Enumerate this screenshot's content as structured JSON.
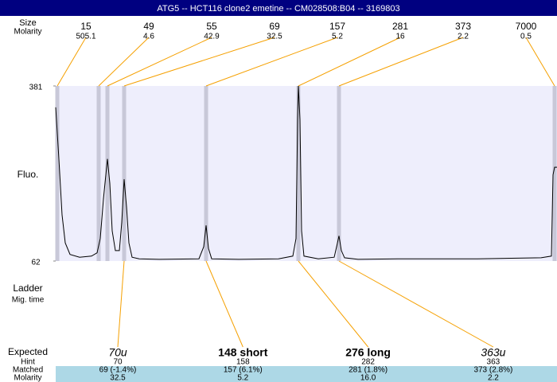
{
  "title": "ATG5 -- HCT116 clone2 emetine -- CM028508:B04 -- 3169803",
  "row_labels": {
    "size": "Size",
    "molarity": "Molarity",
    "fluo": "Fluo.",
    "ladder": "Ladder",
    "mig_time": "Mig. time",
    "expected": "Expected",
    "hint": "Hint",
    "matched": "Matched",
    "molarity_bottom": "Molarity"
  },
  "ladder": [
    {
      "size": 15,
      "molarity": 505.1
    },
    {
      "size": 49,
      "molarity": 4.6
    },
    {
      "size": 55,
      "molarity": 42.9
    },
    {
      "size": 69,
      "molarity": 32.5
    },
    {
      "size": 157,
      "molarity": 5.2
    },
    {
      "size": 281,
      "molarity": 16
    },
    {
      "size": 373,
      "molarity": 2.2
    },
    {
      "size": 7000,
      "molarity": 0.5
    }
  ],
  "expected": [
    {
      "label": "70u",
      "hint": 70,
      "matched": "69 (-1.4%)",
      "molarity": "32.5"
    },
    {
      "label": "148 short",
      "hint": 158,
      "matched": "157 (6.1%)",
      "molarity": "5.2"
    },
    {
      "label": "276 long",
      "hint": 282,
      "matched": "281 (1.8%)",
      "molarity": "16.0"
    },
    {
      "label": "363u",
      "hint": 363,
      "matched": "373 (2.8%)",
      "molarity": "2.2"
    }
  ],
  "chart_data": {
    "type": "line",
    "color": "#000000",
    "xlim": [
      0,
      630
    ],
    "ylim": [
      62,
      381
    ],
    "yticks": [
      62,
      381
    ],
    "x": [
      0,
      4,
      8,
      12,
      18,
      30,
      45,
      52,
      56,
      60,
      63,
      65,
      68,
      71,
      75,
      80,
      83,
      86,
      89,
      92,
      96,
      105,
      130,
      180,
      186,
      189,
      192,
      196,
      230,
      280,
      298,
      302,
      304,
      305,
      307,
      309,
      312,
      330,
      350,
      353,
      356,
      359,
      363,
      380,
      430,
      530,
      610,
      623,
      625,
      627,
      630
    ],
    "values": [
      342,
      248,
      146,
      95,
      74,
      69,
      71,
      77,
      103,
      175,
      219,
      248,
      204,
      117,
      81,
      81,
      132,
      211,
      161,
      95,
      69,
      66,
      65,
      66,
      88,
      127,
      85,
      66,
      65,
      66,
      71,
      103,
      320,
      381,
      320,
      117,
      71,
      66,
      69,
      88,
      108,
      81,
      68,
      65,
      66,
      66,
      68,
      71,
      219,
      233,
      233
    ]
  }
}
